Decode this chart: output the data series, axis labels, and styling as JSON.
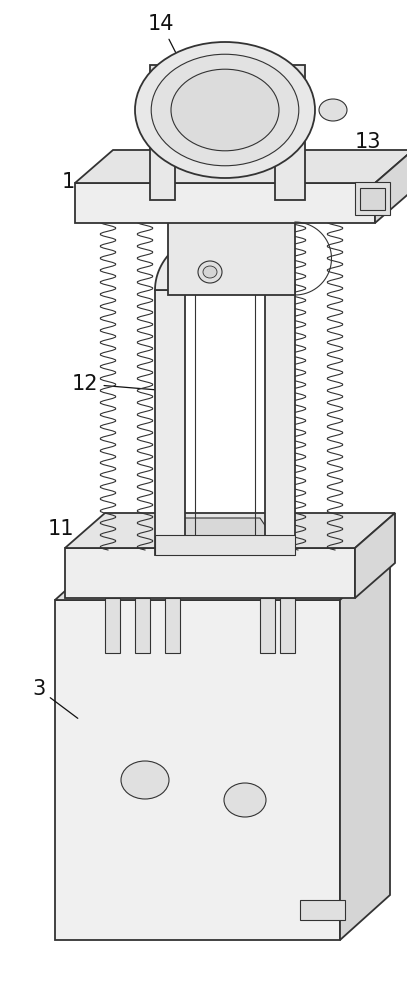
{
  "bg_color": "#ffffff",
  "line_color": "#333333",
  "figsize": [
    4.07,
    10.0
  ],
  "dpi": 100,
  "xlim": [
    0,
    407
  ],
  "ylim": [
    0,
    1000
  ]
}
